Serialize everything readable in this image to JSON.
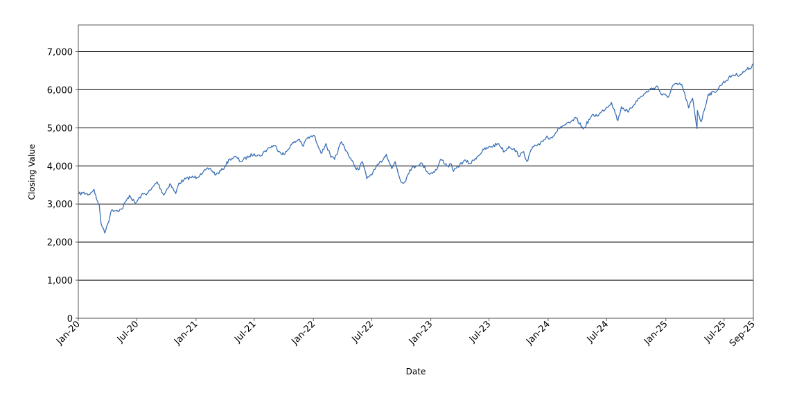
{
  "chart_data": {
    "type": "line",
    "title": "",
    "xlabel": "Date",
    "ylabel": "Closing Value",
    "x_range": [
      "2020-01-01",
      "2025-09-30"
    ],
    "ylim": [
      0,
      7700
    ],
    "grid": "horizontal",
    "line_color": "#3a6fb5",
    "y_ticks": [
      {
        "value": 0,
        "label": "0"
      },
      {
        "value": 1000,
        "label": "1,000"
      },
      {
        "value": 2000,
        "label": "2,000"
      },
      {
        "value": 3000,
        "label": "3,000"
      },
      {
        "value": 4000,
        "label": "4,000"
      },
      {
        "value": 5000,
        "label": "5,000"
      },
      {
        "value": 6000,
        "label": "6,000"
      },
      {
        "value": 7000,
        "label": "7,000"
      }
    ],
    "x_ticks": [
      {
        "date": "2020-01-01",
        "label": "Jan-20"
      },
      {
        "date": "2020-07-01",
        "label": "Jul-20"
      },
      {
        "date": "2021-01-01",
        "label": "Jan-21"
      },
      {
        "date": "2021-07-01",
        "label": "Jul-21"
      },
      {
        "date": "2022-01-01",
        "label": "Jan-22"
      },
      {
        "date": "2022-07-01",
        "label": "Jul-22"
      },
      {
        "date": "2023-01-01",
        "label": "Jan-23"
      },
      {
        "date": "2023-07-01",
        "label": "Jul-23"
      },
      {
        "date": "2024-01-01",
        "label": "Jan-24"
      },
      {
        "date": "2024-07-01",
        "label": "Jul-24"
      },
      {
        "date": "2025-01-01",
        "label": "Jan-25"
      },
      {
        "date": "2025-07-01",
        "label": "Jul-25"
      },
      {
        "date": "2025-09-30",
        "label": "Sep-25"
      }
    ],
    "series": [
      {
        "x": [
          "2020-01-02",
          "2020-01-15",
          "2020-02-03",
          "2020-02-19",
          "2020-02-27",
          "2020-03-06",
          "2020-03-12",
          "2020-03-16",
          "2020-03-23",
          "2020-04-01",
          "2020-04-14",
          "2020-05-01",
          "2020-05-15",
          "2020-06-08",
          "2020-06-26",
          "2020-07-15",
          "2020-08-03",
          "2020-08-14",
          "2020-09-02",
          "2020-09-23",
          "2020-10-12",
          "2020-10-30",
          "2020-11-09",
          "2020-11-24",
          "2020-12-15",
          "2021-01-04",
          "2021-01-15",
          "2021-02-12",
          "2021-03-04",
          "2021-03-25",
          "2021-04-16",
          "2021-05-07",
          "2021-05-19",
          "2021-06-15",
          "2021-07-01",
          "2021-07-19",
          "2021-08-16",
          "2021-09-02",
          "2021-09-20",
          "2021-10-04",
          "2021-10-22",
          "2021-11-18",
          "2021-12-01",
          "2021-12-10",
          "2022-01-03",
          "2022-01-27",
          "2022-02-09",
          "2022-02-24",
          "2022-03-08",
          "2022-03-29",
          "2022-04-14",
          "2022-05-09",
          "2022-05-20",
          "2022-06-03",
          "2022-06-16",
          "2022-07-05",
          "2022-08-16",
          "2022-09-02",
          "2022-09-12",
          "2022-09-30",
          "2022-10-12",
          "2022-10-28",
          "2022-11-15",
          "2022-12-01",
          "2022-12-28",
          "2023-01-19",
          "2023-02-02",
          "2023-02-23",
          "2023-03-06",
          "2023-03-13",
          "2023-04-14",
          "2023-05-04",
          "2023-05-19",
          "2023-06-15",
          "2023-07-31",
          "2023-08-18",
          "2023-09-01",
          "2023-09-15",
          "2023-10-05",
          "2023-10-17",
          "2023-10-27",
          "2023-11-14",
          "2023-12-06",
          "2023-12-28",
          "2024-01-05",
          "2024-02-09",
          "2024-03-08",
          "2024-03-28",
          "2024-04-19",
          "2024-05-15",
          "2024-06-07",
          "2024-07-16",
          "2024-08-05",
          "2024-08-16",
          "2024-09-06",
          "2024-10-01",
          "2024-11-11",
          "2024-12-06",
          "2024-12-18",
          "2025-01-10",
          "2025-01-23",
          "2025-02-19",
          "2025-03-13",
          "2025-03-25",
          "2025-04-08",
          "2025-04-09",
          "2025-04-21",
          "2025-05-13",
          "2025-06-02",
          "2025-06-27",
          "2025-07-28",
          "2025-08-20",
          "2025-09-10",
          "2025-09-25",
          "2025-09-30"
        ],
        "y": [
          3258,
          3290,
          3250,
          3386,
          3116,
          2972,
          2480,
          2386,
          2237,
          2470,
          2846,
          2830,
          2863,
          3232,
          3009,
          3227,
          3290,
          3373,
          3580,
          3237,
          3534,
          3270,
          3550,
          3630,
          3700,
          3700,
          3795,
          3934,
          3768,
          3909,
          4185,
          4232,
          4115,
          4255,
          4319,
          4258,
          4480,
          4537,
          4358,
          4300,
          4545,
          4705,
          4513,
          4712,
          4796,
          4326,
          4587,
          4225,
          4170,
          4632,
          4392,
          3991,
          3900,
          4108,
          3666,
          3831,
          4305,
          3924,
          4110,
          3585,
          3577,
          3901,
          3992,
          4080,
          3783,
          3898,
          4179,
          3991,
          4048,
          3855,
          4137,
          4061,
          4191,
          4425,
          4588,
          4370,
          4516,
          4450,
          4258,
          4373,
          4117,
          4502,
          4549,
          4783,
          4697,
          5026,
          5123,
          5254,
          4967,
          5308,
          5347,
          5667,
          5186,
          5554,
          5408,
          5708,
          6001,
          6090,
          5872,
          5827,
          6118,
          6144,
          5521,
          5777,
          4982,
          5456,
          5158,
          5886,
          5935,
          6173,
          6389,
          6395,
          6532,
          6604,
          6688
        ]
      }
    ]
  }
}
